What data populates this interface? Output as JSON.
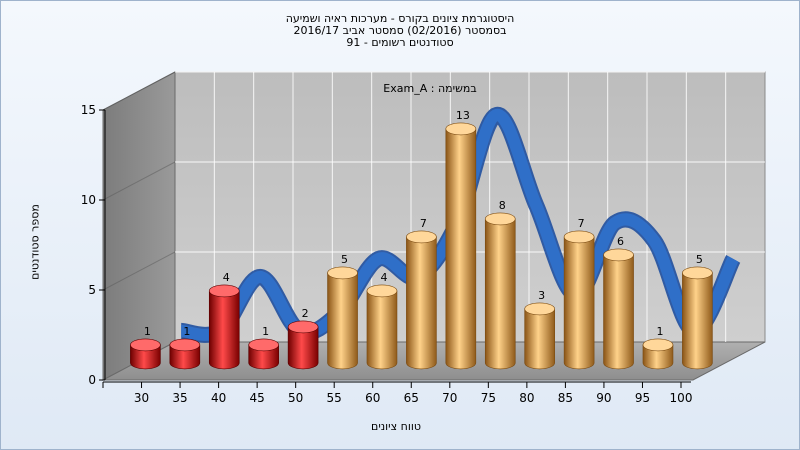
{
  "title_lines": [
    "היסטוגרמת ציונים בקורס - מערכות ראיה ושמיעה",
    "בסמסטר  (02/2016)  סמסטר אביב 2016/17",
    "סטודנטים רשומים - 91"
  ],
  "chart_data": {
    "type": "bar",
    "subtitle": "במשימה : Exam_A",
    "xlabel": "טווח ציונים",
    "ylabel": "מספר סטודנטים",
    "ylim": [
      0,
      15
    ],
    "yticks": [
      "0",
      "5",
      "10",
      "15"
    ],
    "categories": [
      "30",
      "35",
      "40",
      "45",
      "50",
      "55",
      "60",
      "65",
      "70",
      "75",
      "80",
      "85",
      "90",
      "95",
      "100"
    ],
    "values": [
      1,
      1,
      4,
      1,
      2,
      5,
      4,
      7,
      13,
      8,
      3,
      7,
      6,
      1,
      5
    ],
    "value_labels": [
      "1",
      "1",
      "4",
      "1",
      "2",
      "5",
      "4",
      "7",
      "13",
      "8",
      "3",
      "7",
      "6",
      "1",
      "5"
    ],
    "bar_colors": [
      "#d21a1a",
      "#d21a1a",
      "#d21a1a",
      "#d21a1a",
      "#d21a1a",
      "#e1a24c",
      "#e1a24c",
      "#e1a24c",
      "#e1a24c",
      "#e1a24c",
      "#e1a24c",
      "#e1a24c",
      "#e1a24c",
      "#e1a24c",
      "#e1a24c"
    ],
    "trend_color": "#2f6fc8",
    "grid": true
  }
}
